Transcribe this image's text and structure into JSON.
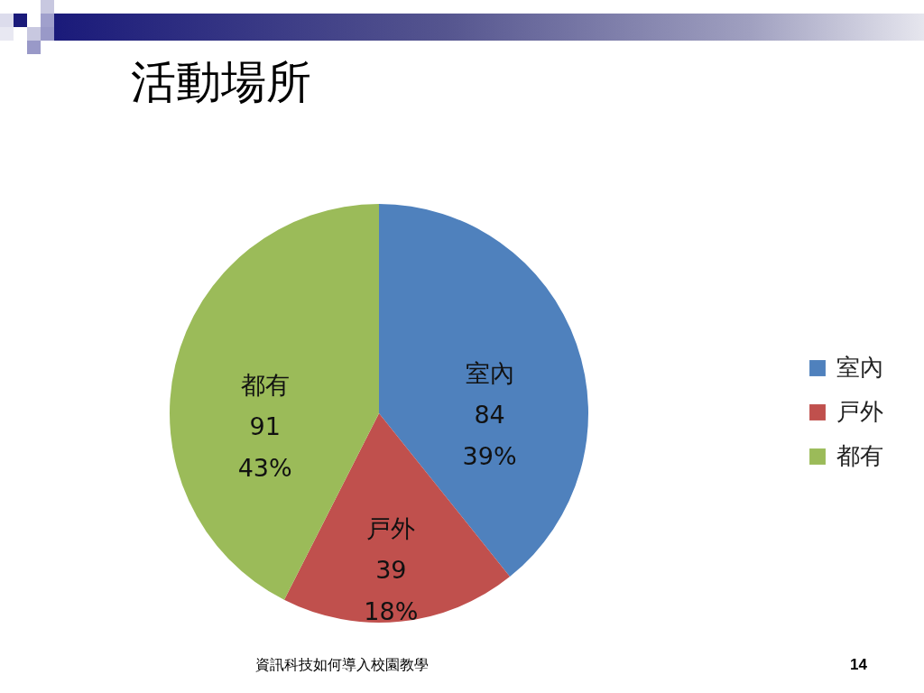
{
  "chart_data": {
    "type": "pie",
    "title": "活動場所",
    "categories": [
      "室內",
      "戸外",
      "都有"
    ],
    "values": [
      84,
      39,
      91
    ],
    "value_labels": [
      "84\n39%",
      "39\n18%",
      "91\n43%"
    ],
    "colors": [
      "#4f81bd",
      "#c0504d",
      "#9bbb59"
    ],
    "legend": "right",
    "annotations": [
      "資訊科技如何導入校園教學",
      "14"
    ]
  }
}
